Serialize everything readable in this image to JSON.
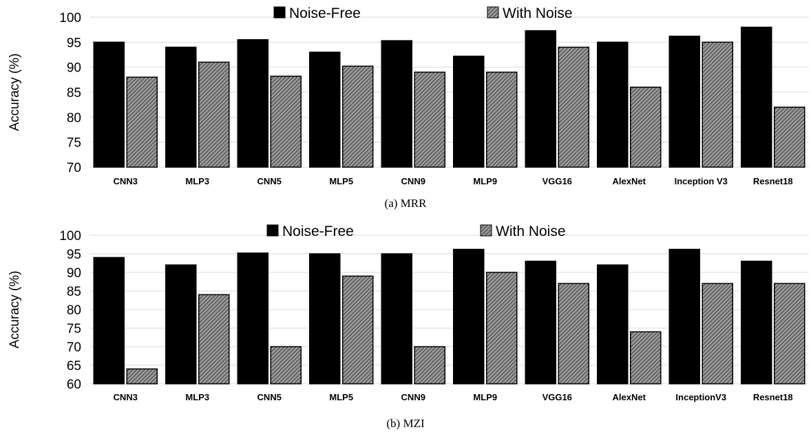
{
  "chart_data": [
    {
      "type": "bar",
      "caption": "(a) MRR",
      "ylabel": "Accuracy (%)",
      "ylim": [
        70,
        100
      ],
      "yticks": [
        70,
        75,
        80,
        85,
        90,
        95,
        100
      ],
      "grid": true,
      "legend_position": "top",
      "categories": [
        "CNN3",
        "MLP3",
        "CNN5",
        "MLP5",
        "CNN9",
        "MLP9",
        "VGG16",
        "AlexNet",
        "Inception V3",
        "Resnet18"
      ],
      "series": [
        {
          "name": "Noise-Free",
          "color": "#000000",
          "pattern": "solid",
          "values": [
            95,
            94,
            95.5,
            93,
            95.3,
            92.2,
            97.3,
            95,
            96.2,
            98
          ]
        },
        {
          "name": "With Noise",
          "color": "#666666",
          "pattern": "hatched",
          "values": [
            88,
            91,
            88.2,
            90.2,
            89,
            89,
            94,
            86,
            95,
            82
          ]
        }
      ]
    },
    {
      "type": "bar",
      "caption": "(b) MZI",
      "ylabel": "Accuracy (%)",
      "ylim": [
        60,
        100
      ],
      "yticks": [
        60,
        65,
        70,
        75,
        80,
        85,
        90,
        95,
        100
      ],
      "grid": true,
      "legend_position": "top",
      "categories": [
        "CNN3",
        "MLP3",
        "CNN5",
        "MLP5",
        "CNN9",
        "MLP9",
        "VGG16",
        "AlexNet",
        "InceptionV3",
        "Resnet18"
      ],
      "series": [
        {
          "name": "Noise-Free",
          "color": "#000000",
          "pattern": "solid",
          "values": [
            94,
            92,
            95.2,
            95,
            95,
            96.2,
            93,
            92,
            96.2,
            93
          ]
        },
        {
          "name": "With Noise",
          "color": "#666666",
          "pattern": "hatched",
          "values": [
            64,
            84,
            70,
            89,
            70,
            90,
            87,
            74,
            87,
            87
          ]
        }
      ]
    }
  ]
}
